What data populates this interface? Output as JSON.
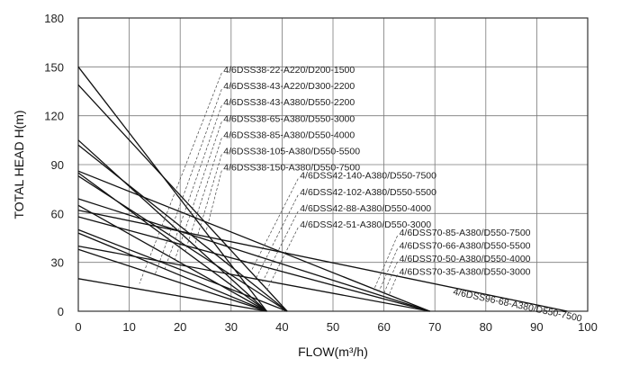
{
  "chart_data": {
    "type": "line",
    "xlabel": "FLOW(m³/h)",
    "ylabel": "TOTAL HEAD H(m)",
    "xlim": [
      0,
      100
    ],
    "ylim": [
      0,
      180
    ],
    "x_ticks": [
      "0",
      "10",
      "20",
      "30",
      "40",
      "50",
      "60",
      "70",
      "80",
      "90",
      "100"
    ],
    "y_ticks": [
      "0",
      "30",
      "60",
      "90",
      "120",
      "150",
      "180"
    ],
    "grid": true,
    "series": [
      {
        "name": "4/6DSS38-22-A220/D200-1500",
        "x": [
          0,
          37
        ],
        "y": [
          20,
          0
        ]
      },
      {
        "name": "4/6DSS38-43-A220/D300-2200",
        "x": [
          0,
          37
        ],
        "y": [
          38,
          0
        ]
      },
      {
        "name": "4/6DSS38-43-A380/D550-2200",
        "x": [
          0,
          37
        ],
        "y": [
          48,
          0
        ]
      },
      {
        "name": "4/6DSS38-65-A380/D550-3000",
        "x": [
          0,
          37
        ],
        "y": [
          65,
          0
        ]
      },
      {
        "name": "4/6DSS38-85-A380/D550-4000",
        "x": [
          0,
          37
        ],
        "y": [
          85,
          0
        ]
      },
      {
        "name": "4/6DSS38-105-A380/D550-5500",
        "x": [
          0,
          37
        ],
        "y": [
          105,
          0
        ]
      },
      {
        "name": "4/6DSS38-150-A380/D550-7500",
        "x": [
          0,
          37
        ],
        "y": [
          150,
          0
        ]
      },
      {
        "name": "4/6DSS42-140-A380/D550-7500",
        "x": [
          0,
          41
        ],
        "y": [
          139,
          0
        ]
      },
      {
        "name": "4/6DSS42-102-A380/D550-5500",
        "x": [
          0,
          41
        ],
        "y": [
          102,
          0
        ]
      },
      {
        "name": "4/6DSS42-88-A380/D550-4000",
        "x": [
          0,
          41
        ],
        "y": [
          83,
          0
        ]
      },
      {
        "name": "4/6DSS42-51-A380/D550-3000",
        "x": [
          0,
          41
        ],
        "y": [
          50,
          0
        ]
      },
      {
        "name": "4/6DSS70-85-A380/D550-7500",
        "x": [
          0,
          69
        ],
        "y": [
          86,
          0
        ]
      },
      {
        "name": "4/6DSS70-66-A380/D550-5500",
        "x": [
          0,
          69
        ],
        "y": [
          69,
          0
        ]
      },
      {
        "name": "4/6DSS70-50-A380/D550-4000",
        "x": [
          0,
          69
        ],
        "y": [
          58,
          0
        ]
      },
      {
        "name": "4/6DSS70-35-A380/D550-3000",
        "x": [
          0,
          69
        ],
        "y": [
          40,
          0
        ]
      },
      {
        "name": "4/6DSS96-68-A380/D550-7500",
        "x": [
          0,
          96
        ],
        "y": [
          62,
          0
        ]
      }
    ],
    "annotations": [
      {
        "text": "4/6DSS38-22-A220/D200-1500",
        "label_at": [
          28.5,
          148
        ],
        "leader_to": [
          12,
          17
        ]
      },
      {
        "text": "4/6DSS38-43-A220/D300-2200",
        "label_at": [
          28.5,
          138
        ],
        "leader_to": [
          15,
          22
        ]
      },
      {
        "text": "4/6DSS38-43-A380/D550-2200",
        "label_at": [
          28.5,
          128
        ],
        "leader_to": [
          17,
          26
        ]
      },
      {
        "text": "4/6DSS38-65-A380/D550-3000",
        "label_at": [
          28.5,
          118
        ],
        "leader_to": [
          19,
          32
        ]
      },
      {
        "text": "4/6DSS38-85-A380/D550-4000",
        "label_at": [
          28.5,
          108
        ],
        "leader_to": [
          21,
          37
        ]
      },
      {
        "text": "4/6DSS38-105-A380/D550-5500",
        "label_at": [
          28.5,
          98
        ],
        "leader_to": [
          23,
          42
        ]
      },
      {
        "text": "4/6DSS38-150-A380/D550-7500",
        "label_at": [
          28.5,
          88
        ],
        "leader_to": [
          25,
          48
        ]
      },
      {
        "text": "4/6DSS42-140-A380/D550-7500",
        "label_at": [
          43.5,
          83
        ],
        "leader_to": [
          34,
          25
        ]
      },
      {
        "text": "4/6DSS42-102-A380/D550-5500",
        "label_at": [
          43.5,
          73
        ],
        "leader_to": [
          35,
          21
        ]
      },
      {
        "text": "4/6DSS42-88-A380/D550-4000",
        "label_at": [
          43.5,
          63
        ],
        "leader_to": [
          36,
          17
        ]
      },
      {
        "text": "4/6DSS42-51-A380/D550-3000",
        "label_at": [
          43.5,
          53
        ],
        "leader_to": [
          37,
          13
        ]
      },
      {
        "text": "4/6DSS70-85-A380/D550-7500",
        "label_at": [
          63,
          48
        ],
        "leader_to": [
          58,
          13
        ]
      },
      {
        "text": "4/6DSS70-66-A380/D550-5500",
        "label_at": [
          63,
          40
        ],
        "leader_to": [
          59,
          12
        ]
      },
      {
        "text": "4/6DSS70-50-A380/D550-4000",
        "label_at": [
          63,
          32
        ],
        "leader_to": [
          60,
          11
        ]
      },
      {
        "text": "4/6DSS70-35-A380/D550-3000",
        "label_at": [
          63,
          24
        ],
        "leader_to": [
          61,
          10
        ]
      },
      {
        "text": "4/6DSS96-68-A380/D550-7500",
        "label_at": [
          73.5,
          12
        ],
        "rotate": 12
      }
    ]
  }
}
